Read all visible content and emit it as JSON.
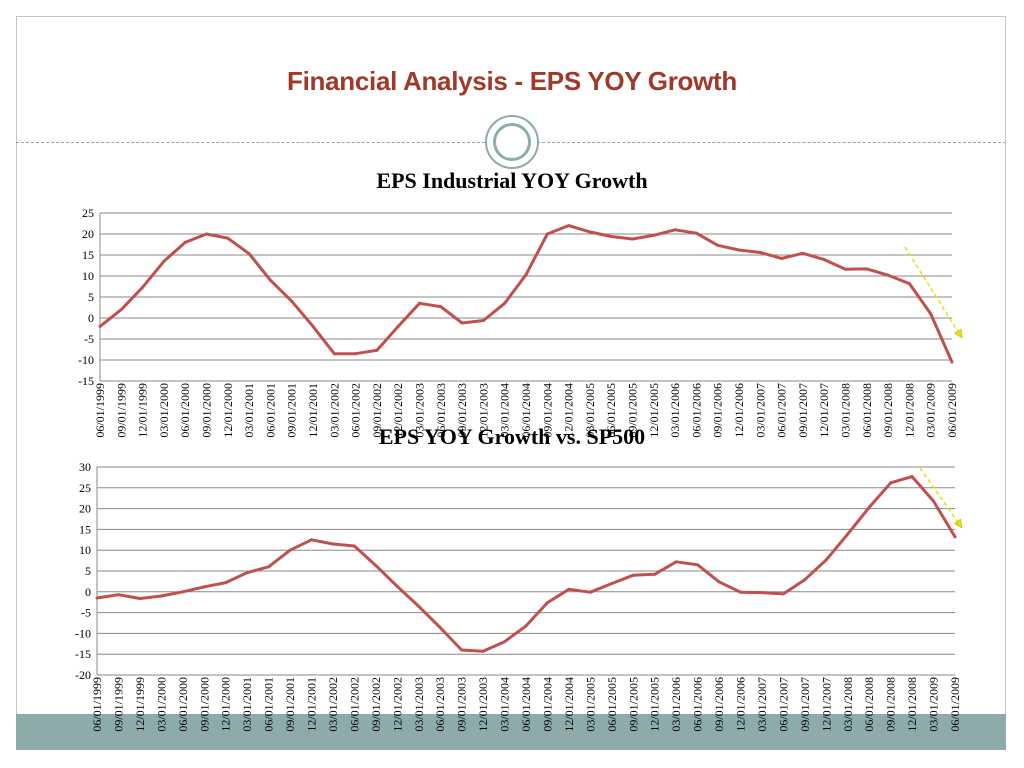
{
  "slide": {
    "title": "Financial Analysis - EPS YOY Growth"
  },
  "colors": {
    "series": "#c0504d",
    "title": "#a0392a",
    "accent": "#8eabab",
    "trend_arrow": "#e6e000"
  },
  "chart_data": [
    {
      "type": "line",
      "title": "EPS Industrial YOY Growth",
      "xlabel": "",
      "ylabel": "",
      "ylim": [
        -15,
        25
      ],
      "yticks": [
        25,
        20,
        15,
        10,
        5,
        0,
        -5,
        -10,
        -15
      ],
      "grid": true,
      "categories": [
        "06/01/1999",
        "09/01/1999",
        "12/01/1999",
        "03/01/2000",
        "06/01/2000",
        "09/01/2000",
        "12/01/2000",
        "03/01/2001",
        "06/01/2001",
        "09/01/2001",
        "12/01/2001",
        "03/01/2002",
        "06/01/2002",
        "09/01/2002",
        "12/01/2002",
        "03/01/2003",
        "06/01/2003",
        "09/01/2003",
        "12/01/2003",
        "03/01/2004",
        "06/01/2004",
        "09/01/2004",
        "12/01/2004",
        "03/01/2005",
        "06/01/2005",
        "09/01/2005",
        "12/01/2005",
        "03/01/2006",
        "06/01/2006",
        "09/01/2006",
        "12/01/2006",
        "03/01/2007",
        "06/01/2007",
        "09/01/2007",
        "12/01/2007",
        "03/01/2008",
        "06/01/2008",
        "09/01/2008",
        "12/01/2008",
        "03/01/2009",
        "06/01/2009"
      ],
      "values": [
        -2,
        2,
        7.3,
        13.5,
        18,
        20,
        19,
        15.3,
        9,
        4,
        -2,
        -8.5,
        -8.5,
        -7.7,
        -2,
        3.5,
        2.7,
        -1.2,
        -0.6,
        3.5,
        10.3,
        20,
        22,
        20.5,
        19.4,
        18.8,
        19.7,
        21,
        20.2,
        17.3,
        16.2,
        15.6,
        14.2,
        15.4,
        13.9,
        11.6,
        11.7,
        10.2,
        8.2,
        1,
        -10.5
      ]
    },
    {
      "type": "line",
      "title": "EPS YOY Growth vs. SP500",
      "xlabel": "",
      "ylabel": "",
      "ylim": [
        -20,
        30
      ],
      "yticks": [
        30,
        25,
        20,
        15,
        10,
        5,
        0,
        -5,
        -10,
        -15,
        -20
      ],
      "grid": true,
      "categories": [
        "06/01/1999",
        "09/01/1999",
        "12/01/1999",
        "03/01/2000",
        "06/01/2000",
        "09/01/2000",
        "12/01/2000",
        "03/01/2001",
        "06/01/2001",
        "09/01/2001",
        "12/01/2001",
        "03/01/2002",
        "06/01/2002",
        "09/01/2002",
        "12/01/2002",
        "03/01/2003",
        "06/01/2003",
        "09/01/2003",
        "12/01/2003",
        "03/01/2004",
        "06/01/2004",
        "09/01/2004",
        "12/01/2004",
        "03/01/2005",
        "06/01/2005",
        "09/01/2005",
        "12/01/2005",
        "03/01/2006",
        "06/01/2006",
        "09/01/2006",
        "12/01/2006",
        "03/01/2007",
        "06/01/2007",
        "09/01/2007",
        "12/01/2007",
        "03/01/2008",
        "06/01/2008",
        "09/01/2008",
        "12/01/2008",
        "03/01/2009",
        "06/01/2009"
      ],
      "values": [
        -1.5,
        -0.7,
        -1.6,
        -1,
        0,
        1.2,
        2.2,
        4.6,
        6,
        10,
        12.5,
        11.5,
        11,
        6.3,
        1.3,
        -3.5,
        -8.6,
        -14,
        -14.3,
        -12,
        -8.2,
        -2.6,
        0.6,
        -0.1,
        2,
        4,
        4.2,
        7.2,
        6.5,
        2.4,
        -0.1,
        -0.2,
        -0.5,
        2.9,
        7.7,
        13.9,
        20.3,
        26.2,
        27.7,
        21.8,
        13.2
      ]
    }
  ]
}
